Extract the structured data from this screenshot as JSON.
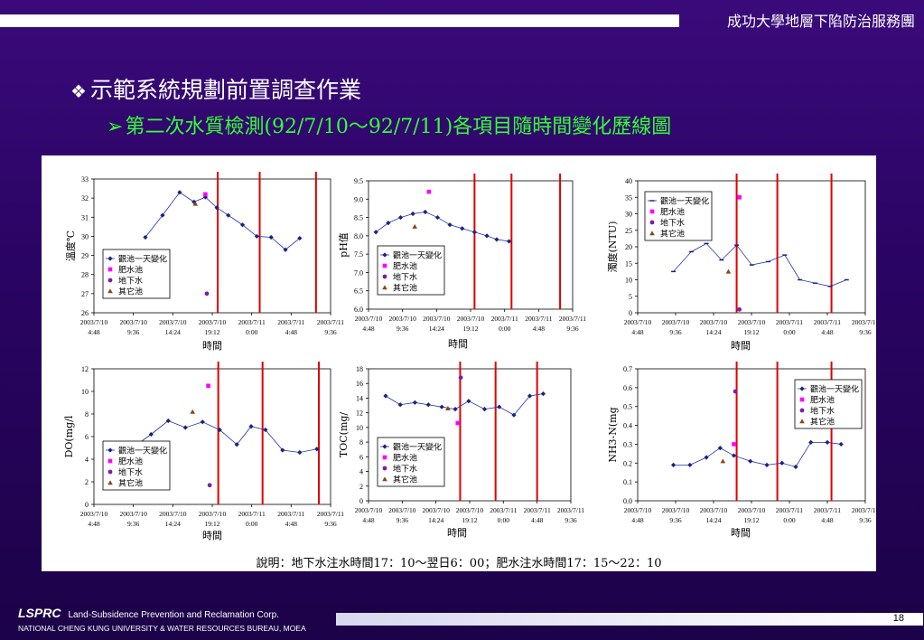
{
  "header": {
    "org": "成功大學地層下陷防治服務團"
  },
  "title": {
    "bullet": "❖",
    "main": "示範系統規劃前置調查作業",
    "arrow": "➢",
    "sub": "第二次水質檢測(92/7/10～92/7/11)各項目隨時間變化歷線圖"
  },
  "note": "說明：地下水注水時間17：10～翌日6：00；肥水注水時間17：15～22：10",
  "footer": {
    "brand": "LSPRC",
    "corp": "Land-Subsidence Prevention and Reclamation Corp.",
    "univ": "NATIONAL CHENG KUNG UNIVERSITY & WATER RESOURCES BUREAU, MOEA",
    "page": "18"
  },
  "colors": {
    "pond": "#1a237e",
    "fertilizer": "#ff00ff",
    "groundwater": "#7b1fa2",
    "other": "#8b4513",
    "redline": "#e00000"
  },
  "legend": [
    "觀池一天變化",
    "肥水池",
    "地下水",
    "其它池"
  ],
  "chart_data": [
    {
      "type": "scatter",
      "ylabel": "溫度℃",
      "xlabel": "時間",
      "ylim": [
        26,
        33
      ],
      "yticks": [
        26,
        27,
        28,
        29,
        30,
        31,
        32,
        33
      ],
      "xlim": [
        0,
        1656
      ],
      "xticks": [
        [
          0,
          "2003/7/10",
          "4:48"
        ],
        [
          288,
          "2003/7/10",
          "9:36"
        ],
        [
          576,
          "2003/7/10",
          "14:24"
        ],
        [
          864,
          "2003/7/10",
          "19:12"
        ],
        [
          1152,
          "2003/7/11",
          "0:00"
        ],
        [
          1440,
          "2003/7/11",
          "4:48"
        ],
        [
          1728,
          "2003/7/11",
          "9:36"
        ]
      ],
      "legend_pos": "lower-left",
      "vlines": [
        866,
        1160,
        1554
      ],
      "series": [
        {
          "name": "觀池一天變化",
          "marker": "diamond",
          "color": "#1a237e",
          "line": true,
          "x": [
            360,
            480,
            600,
            700,
            780,
            860,
            940,
            1040,
            1140,
            1240,
            1340,
            1440
          ],
          "y": [
            29.95,
            31.1,
            32.3,
            31.8,
            32.05,
            31.5,
            31.1,
            30.6,
            30.0,
            29.95,
            29.3,
            29.9
          ]
        },
        {
          "name": "肥水池",
          "marker": "square",
          "color": "#ff00ff",
          "x": [
            780
          ],
          "y": [
            32.2
          ]
        },
        {
          "name": "地下水",
          "marker": "circle",
          "color": "#7b1fa2",
          "x": [
            790
          ],
          "y": [
            27.0
          ]
        },
        {
          "name": "其它池",
          "marker": "triangle",
          "color": "#8b4513",
          "x": [
            710
          ],
          "y": [
            31.7
          ]
        }
      ]
    },
    {
      "type": "scatter",
      "ylabel": "pH值",
      "xlabel": "時間",
      "ylim": [
        6.0,
        9.5
      ],
      "yticks": [
        6.0,
        6.5,
        7.0,
        7.5,
        8.0,
        8.5,
        9.0,
        9.5
      ],
      "xlim": [
        0,
        1656
      ],
      "xticks": [
        [
          0,
          "2003/7/10",
          "4:48"
        ],
        [
          288,
          "2003/7/10",
          "9:36"
        ],
        [
          576,
          "2003/7/10",
          "14:24"
        ],
        [
          864,
          "2003/7/10",
          "19:12"
        ],
        [
          1152,
          "2003/7/11",
          "0:00"
        ],
        [
          1440,
          "2003/7/11",
          "4:48"
        ],
        [
          1728,
          "2003/7/11",
          "9:36"
        ]
      ],
      "legend_pos": "lower-left",
      "vlines": [
        860,
        1160,
        1554
      ],
      "series": [
        {
          "name": "觀池一天變化",
          "marker": "diamond",
          "color": "#1a237e",
          "line": true,
          "x": [
            60,
            160,
            260,
            360,
            460,
            560,
            660,
            760,
            860,
            960,
            1040,
            1140
          ],
          "y": [
            8.1,
            8.35,
            8.5,
            8.6,
            8.65,
            8.5,
            8.3,
            8.2,
            8.1,
            8.0,
            7.9,
            7.85
          ]
        },
        {
          "name": "肥水池",
          "marker": "square",
          "color": "#ff00ff",
          "x": [
            490
          ],
          "y": [
            9.2
          ]
        },
        {
          "name": "地下水",
          "marker": "circle",
          "color": "#7b1fa2",
          "x": [
            505
          ],
          "y": [
            7.55
          ]
        },
        {
          "name": "其它池",
          "marker": "triangle",
          "color": "#8b4513",
          "x": [
            375
          ],
          "y": [
            8.25
          ]
        }
      ]
    },
    {
      "type": "scatter",
      "ylabel": "濁度(NTU)",
      "xlabel": "時間",
      "ylim": [
        0,
        40
      ],
      "yticks": [
        0,
        5,
        10,
        15,
        20,
        25,
        30,
        35,
        40
      ],
      "xlim": [
        0,
        1656
      ],
      "xticks": [
        [
          0,
          "2003/7/10",
          "4:48"
        ],
        [
          288,
          "2003/7/10",
          "9:36"
        ],
        [
          576,
          "2003/7/10",
          "14:24"
        ],
        [
          864,
          "2003/7/10",
          "19:12"
        ],
        [
          1152,
          "2003/7/11",
          "0:00"
        ],
        [
          1440,
          "2003/7/11",
          "4:48"
        ],
        [
          1728,
          "2003/7/11",
          "9:36"
        ]
      ],
      "legend_pos": "top-left",
      "vlines": [
        720,
        1016,
        1410
      ],
      "series": [
        {
          "name": "觀池一天變化",
          "marker": "dash",
          "color": "#1a237e",
          "line": true,
          "x": [
            260,
            390,
            500,
            610,
            720,
            830,
            950,
            1070,
            1180,
            1290,
            1400,
            1520
          ],
          "y": [
            12.5,
            18.5,
            21.0,
            16.0,
            20.5,
            14.5,
            15.5,
            17.5,
            10.0,
            9.0,
            8.0,
            10.0
          ]
        },
        {
          "name": "肥水池",
          "marker": "square",
          "color": "#ff00ff",
          "x": [
            740
          ],
          "y": [
            35.0
          ]
        },
        {
          "name": "地下水",
          "marker": "circle",
          "color": "#7b1fa2",
          "x": [
            740
          ],
          "y": [
            1.0
          ]
        },
        {
          "name": "其它池",
          "marker": "triangle",
          "color": "#8b4513",
          "x": [
            660
          ],
          "y": [
            12.5
          ]
        }
      ]
    },
    {
      "type": "scatter",
      "ylabel": "DO(mg/l",
      "xlabel": "時間",
      "ylim": [
        0,
        12
      ],
      "yticks": [
        0,
        2,
        4,
        6,
        8,
        10,
        12
      ],
      "xlim": [
        0,
        1656
      ],
      "xticks": [
        [
          0,
          "2003/7/10",
          "4:48"
        ],
        [
          288,
          "2003/7/10",
          "9:36"
        ],
        [
          576,
          "2003/7/10",
          "14:24"
        ],
        [
          864,
          "2003/7/10",
          "19:12"
        ],
        [
          1152,
          "2003/7/11",
          "0:00"
        ],
        [
          1440,
          "2003/7/11",
          "4:48"
        ],
        [
          1728,
          "2003/7/11",
          "9:36"
        ]
      ],
      "legend_pos": "lower-left",
      "vlines": [
        870,
        1180,
        1574
      ],
      "series": [
        {
          "name": "觀池一天變化",
          "marker": "diamond",
          "color": "#1a237e",
          "line": true,
          "x": [
            280,
            400,
            520,
            640,
            760,
            880,
            1000,
            1100,
            1200,
            1320,
            1440,
            1560
          ],
          "y": [
            5.1,
            6.2,
            7.4,
            6.8,
            7.3,
            6.6,
            5.3,
            6.9,
            6.6,
            4.8,
            4.6,
            4.9
          ]
        },
        {
          "name": "肥水池",
          "marker": "square",
          "color": "#ff00ff",
          "x": [
            800
          ],
          "y": [
            10.5
          ]
        },
        {
          "name": "地下水",
          "marker": "circle",
          "color": "#7b1fa2",
          "x": [
            810
          ],
          "y": [
            1.7
          ]
        },
        {
          "name": "其它池",
          "marker": "triangle",
          "color": "#8b4513",
          "x": [
            690
          ],
          "y": [
            8.2
          ]
        }
      ]
    },
    {
      "type": "scatter",
      "ylabel": "TOC(mg/",
      "xlabel": "時間",
      "ylim": [
        0,
        18
      ],
      "yticks": [
        0,
        2,
        4,
        6,
        8,
        10,
        12,
        14,
        16,
        18
      ],
      "xlim": [
        0,
        1656
      ],
      "xticks": [
        [
          0,
          "2003/7/10",
          "4:48"
        ],
        [
          288,
          "2003/7/10",
          "9:36"
        ],
        [
          576,
          "2003/7/10",
          "14:24"
        ],
        [
          864,
          "2003/7/10",
          "19:12"
        ],
        [
          1152,
          "2003/7/11",
          "0:00"
        ],
        [
          1440,
          "2003/7/11",
          "4:48"
        ],
        [
          1728,
          "2003/7/11",
          "9:36"
        ]
      ],
      "legend_pos": "lower-left",
      "vlines": [
        750,
        1040,
        1380
      ],
      "series": [
        {
          "name": "觀池一天變化",
          "marker": "diamond",
          "color": "#1a237e",
          "line": true,
          "x": [
            140,
            260,
            380,
            490,
            600,
            710,
            820,
            950,
            1070,
            1190,
            1320,
            1430
          ],
          "y": [
            14.3,
            13.1,
            13.4,
            13.1,
            12.8,
            12.5,
            13.6,
            12.5,
            12.8,
            11.7,
            14.3,
            14.6
          ]
        },
        {
          "name": "肥水池",
          "marker": "square",
          "color": "#ff00ff",
          "x": [
            730
          ],
          "y": [
            10.6
          ]
        },
        {
          "name": "地下水",
          "marker": "circle",
          "color": "#7b1fa2",
          "x": [
            755
          ],
          "y": [
            16.8
          ]
        },
        {
          "name": "其它池",
          "marker": "triangle",
          "color": "#8b4513",
          "x": [
            650
          ],
          "y": [
            12.6
          ]
        }
      ]
    },
    {
      "type": "scatter",
      "ylabel": "NH3-N(mg",
      "xlabel": "時間",
      "ylim": [
        0,
        0.7
      ],
      "yticks": [
        0,
        0.1,
        0.2,
        0.3,
        0.4,
        0.5,
        0.6,
        0.7
      ],
      "xlim": [
        0,
        1656
      ],
      "xticks": [
        [
          0,
          "2003/7/10",
          "4:48"
        ],
        [
          288,
          "2003/7/10",
          "9:36"
        ],
        [
          576,
          "2003/7/10",
          "14:24"
        ],
        [
          864,
          "2003/7/10",
          "19:12"
        ],
        [
          1152,
          "2003/7/11",
          "0:00"
        ],
        [
          1440,
          "2003/7/11",
          "4:48"
        ],
        [
          1728,
          "2003/7/11",
          "9:36"
        ]
      ],
      "legend_pos": "top-right",
      "vlines": [
        720,
        1016,
        1410
      ],
      "series": [
        {
          "name": "觀池一天變化",
          "marker": "diamond",
          "color": "#1a237e",
          "line": true,
          "x": [
            260,
            380,
            500,
            600,
            700,
            820,
            940,
            1050,
            1150,
            1260,
            1380,
            1480
          ],
          "y": [
            0.19,
            0.19,
            0.23,
            0.28,
            0.24,
            0.21,
            0.19,
            0.2,
            0.18,
            0.31,
            0.31,
            0.3
          ]
        },
        {
          "name": "肥水池",
          "marker": "square",
          "color": "#ff00ff",
          "x": [
            700
          ],
          "y": [
            0.3
          ]
        },
        {
          "name": "地下水",
          "marker": "circle",
          "color": "#7b1fa2",
          "x": [
            710
          ],
          "y": [
            0.58
          ]
        },
        {
          "name": "其它池",
          "marker": "triangle",
          "color": "#8b4513",
          "x": [
            620
          ],
          "y": [
            0.21
          ]
        }
      ]
    }
  ]
}
